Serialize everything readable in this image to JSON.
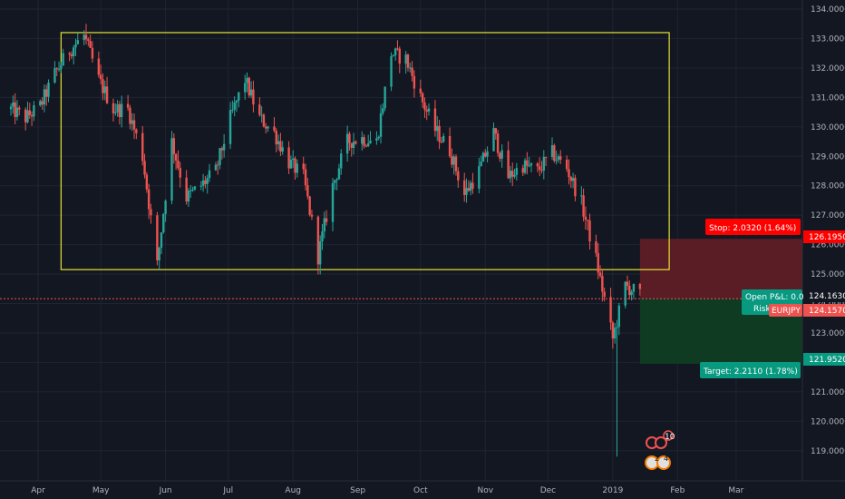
{
  "colors": {
    "background": "#131722",
    "grid": "#1f2433",
    "up": "#26a69a",
    "down": "#ef5350",
    "range_box": "#e6e233",
    "stop_zone": "#5a1d26",
    "target_zone": "#0e3b22",
    "stop_label": "#ff0000",
    "target_label": "#089981",
    "pnl_label": "#089981",
    "price_tag": "#ef5350",
    "axis_text": "#b2b5be"
  },
  "symbol": {
    "name": "EURJPY",
    "price": "124.1570",
    "current_level": "124.1630"
  },
  "position": {
    "stop_label": "Stop: 2.0320 (1.64%)",
    "stop_price": "126.1950",
    "target_label": "Target: 2.2110 (1.78%)",
    "target_price": "121.9520",
    "open_pnl_label": "Open P&L: 0.0",
    "risk_label": "Risk"
  },
  "range_box": {
    "top": 133.2,
    "bottom": 125.15,
    "start": "2018-04-12",
    "end": "2019-01-28"
  },
  "events": {
    "badge_top": "10",
    "badge_bottom_left": "2",
    "badge_bottom_right": "4"
  },
  "chart_data": {
    "type": "candlestick",
    "title": "",
    "xlabel": "",
    "ylabel": "",
    "symbol": "EURJPY",
    "ylim": [
      118.0,
      134.3
    ],
    "y_ticks": [
      {
        "value": 134.0,
        "label": "134.0000"
      },
      {
        "value": 133.0,
        "label": "133.0000"
      },
      {
        "value": 132.0,
        "label": "132.0000"
      },
      {
        "value": 131.0,
        "label": "131.0000"
      },
      {
        "value": 130.0,
        "label": "130.0000"
      },
      {
        "value": 129.0,
        "label": "129.0000"
      },
      {
        "value": 128.0,
        "label": "128.0000"
      },
      {
        "value": 127.0,
        "label": "127.0000"
      },
      {
        "value": 126.0,
        "label": "126.0000"
      },
      {
        "value": 125.0,
        "label": "125.0000"
      },
      {
        "value": 124.0,
        "label": "124.0000"
      },
      {
        "value": 123.0,
        "label": "123.0000"
      },
      {
        "value": 122.0,
        "label": "122.0000"
      },
      {
        "value": 121.0,
        "label": "121.0000"
      },
      {
        "value": 120.0,
        "label": "120.0000"
      },
      {
        "value": 119.0,
        "label": "119.0000"
      }
    ],
    "x_ticks": [
      {
        "date": "2018-04-01",
        "label": "Apr"
      },
      {
        "date": "2018-05-01",
        "label": "May"
      },
      {
        "date": "2018-06-01",
        "label": "Jun"
      },
      {
        "date": "2018-07-01",
        "label": "Jul"
      },
      {
        "date": "2018-08-01",
        "label": "Aug"
      },
      {
        "date": "2018-09-01",
        "label": "Sep"
      },
      {
        "date": "2018-10-01",
        "label": "Oct"
      },
      {
        "date": "2018-11-01",
        "label": "Nov"
      },
      {
        "date": "2018-12-01",
        "label": "Dec"
      },
      {
        "date": "2019-01-01",
        "label": "2019"
      },
      {
        "date": "2019-02-01",
        "label": "Feb"
      },
      {
        "date": "2019-03-01",
        "label": "Mar"
      }
    ],
    "price_path": [
      [
        "2018-03-19",
        130.6
      ],
      [
        "2018-03-26",
        130.3
      ],
      [
        "2018-04-02",
        130.7
      ],
      [
        "2018-04-09",
        131.8
      ],
      [
        "2018-04-16",
        132.6
      ],
      [
        "2018-04-23",
        133.1
      ],
      [
        "2018-04-30",
        131.6
      ],
      [
        "2018-05-07",
        130.6
      ],
      [
        "2018-05-14",
        130.6
      ],
      [
        "2018-05-21",
        129.0
      ],
      [
        "2018-05-28",
        125.3
      ],
      [
        "2018-06-04",
        129.5
      ],
      [
        "2018-06-11",
        127.6
      ],
      [
        "2018-06-18",
        128.0
      ],
      [
        "2018-06-25",
        128.5
      ],
      [
        "2018-07-02",
        130.3
      ],
      [
        "2018-07-09",
        131.6
      ],
      [
        "2018-07-16",
        130.3
      ],
      [
        "2018-07-23",
        129.8
      ],
      [
        "2018-07-30",
        128.8
      ],
      [
        "2018-08-06",
        128.3
      ],
      [
        "2018-08-13",
        125.6
      ],
      [
        "2018-08-20",
        128.0
      ],
      [
        "2018-08-27",
        129.5
      ],
      [
        "2018-09-03",
        129.6
      ],
      [
        "2018-09-10",
        129.5
      ],
      [
        "2018-09-17",
        132.5
      ],
      [
        "2018-09-24",
        132.3
      ],
      [
        "2018-10-01",
        131.0
      ],
      [
        "2018-10-08",
        129.9
      ],
      [
        "2018-10-15",
        129.2
      ],
      [
        "2018-10-22",
        127.7
      ],
      [
        "2018-10-29",
        128.5
      ],
      [
        "2018-11-05",
        129.8
      ],
      [
        "2018-11-12",
        128.3
      ],
      [
        "2018-11-19",
        128.7
      ],
      [
        "2018-11-26",
        128.5
      ],
      [
        "2018-12-03",
        129.1
      ],
      [
        "2018-12-10",
        128.6
      ],
      [
        "2018-12-17",
        127.4
      ],
      [
        "2018-12-24",
        125.5
      ],
      [
        "2019-01-01",
        122.8
      ],
      [
        "2019-01-07",
        124.6
      ],
      [
        "2019-01-14",
        124.3
      ]
    ],
    "extremes": {
      "high": 133.5,
      "low": 118.8
    }
  }
}
